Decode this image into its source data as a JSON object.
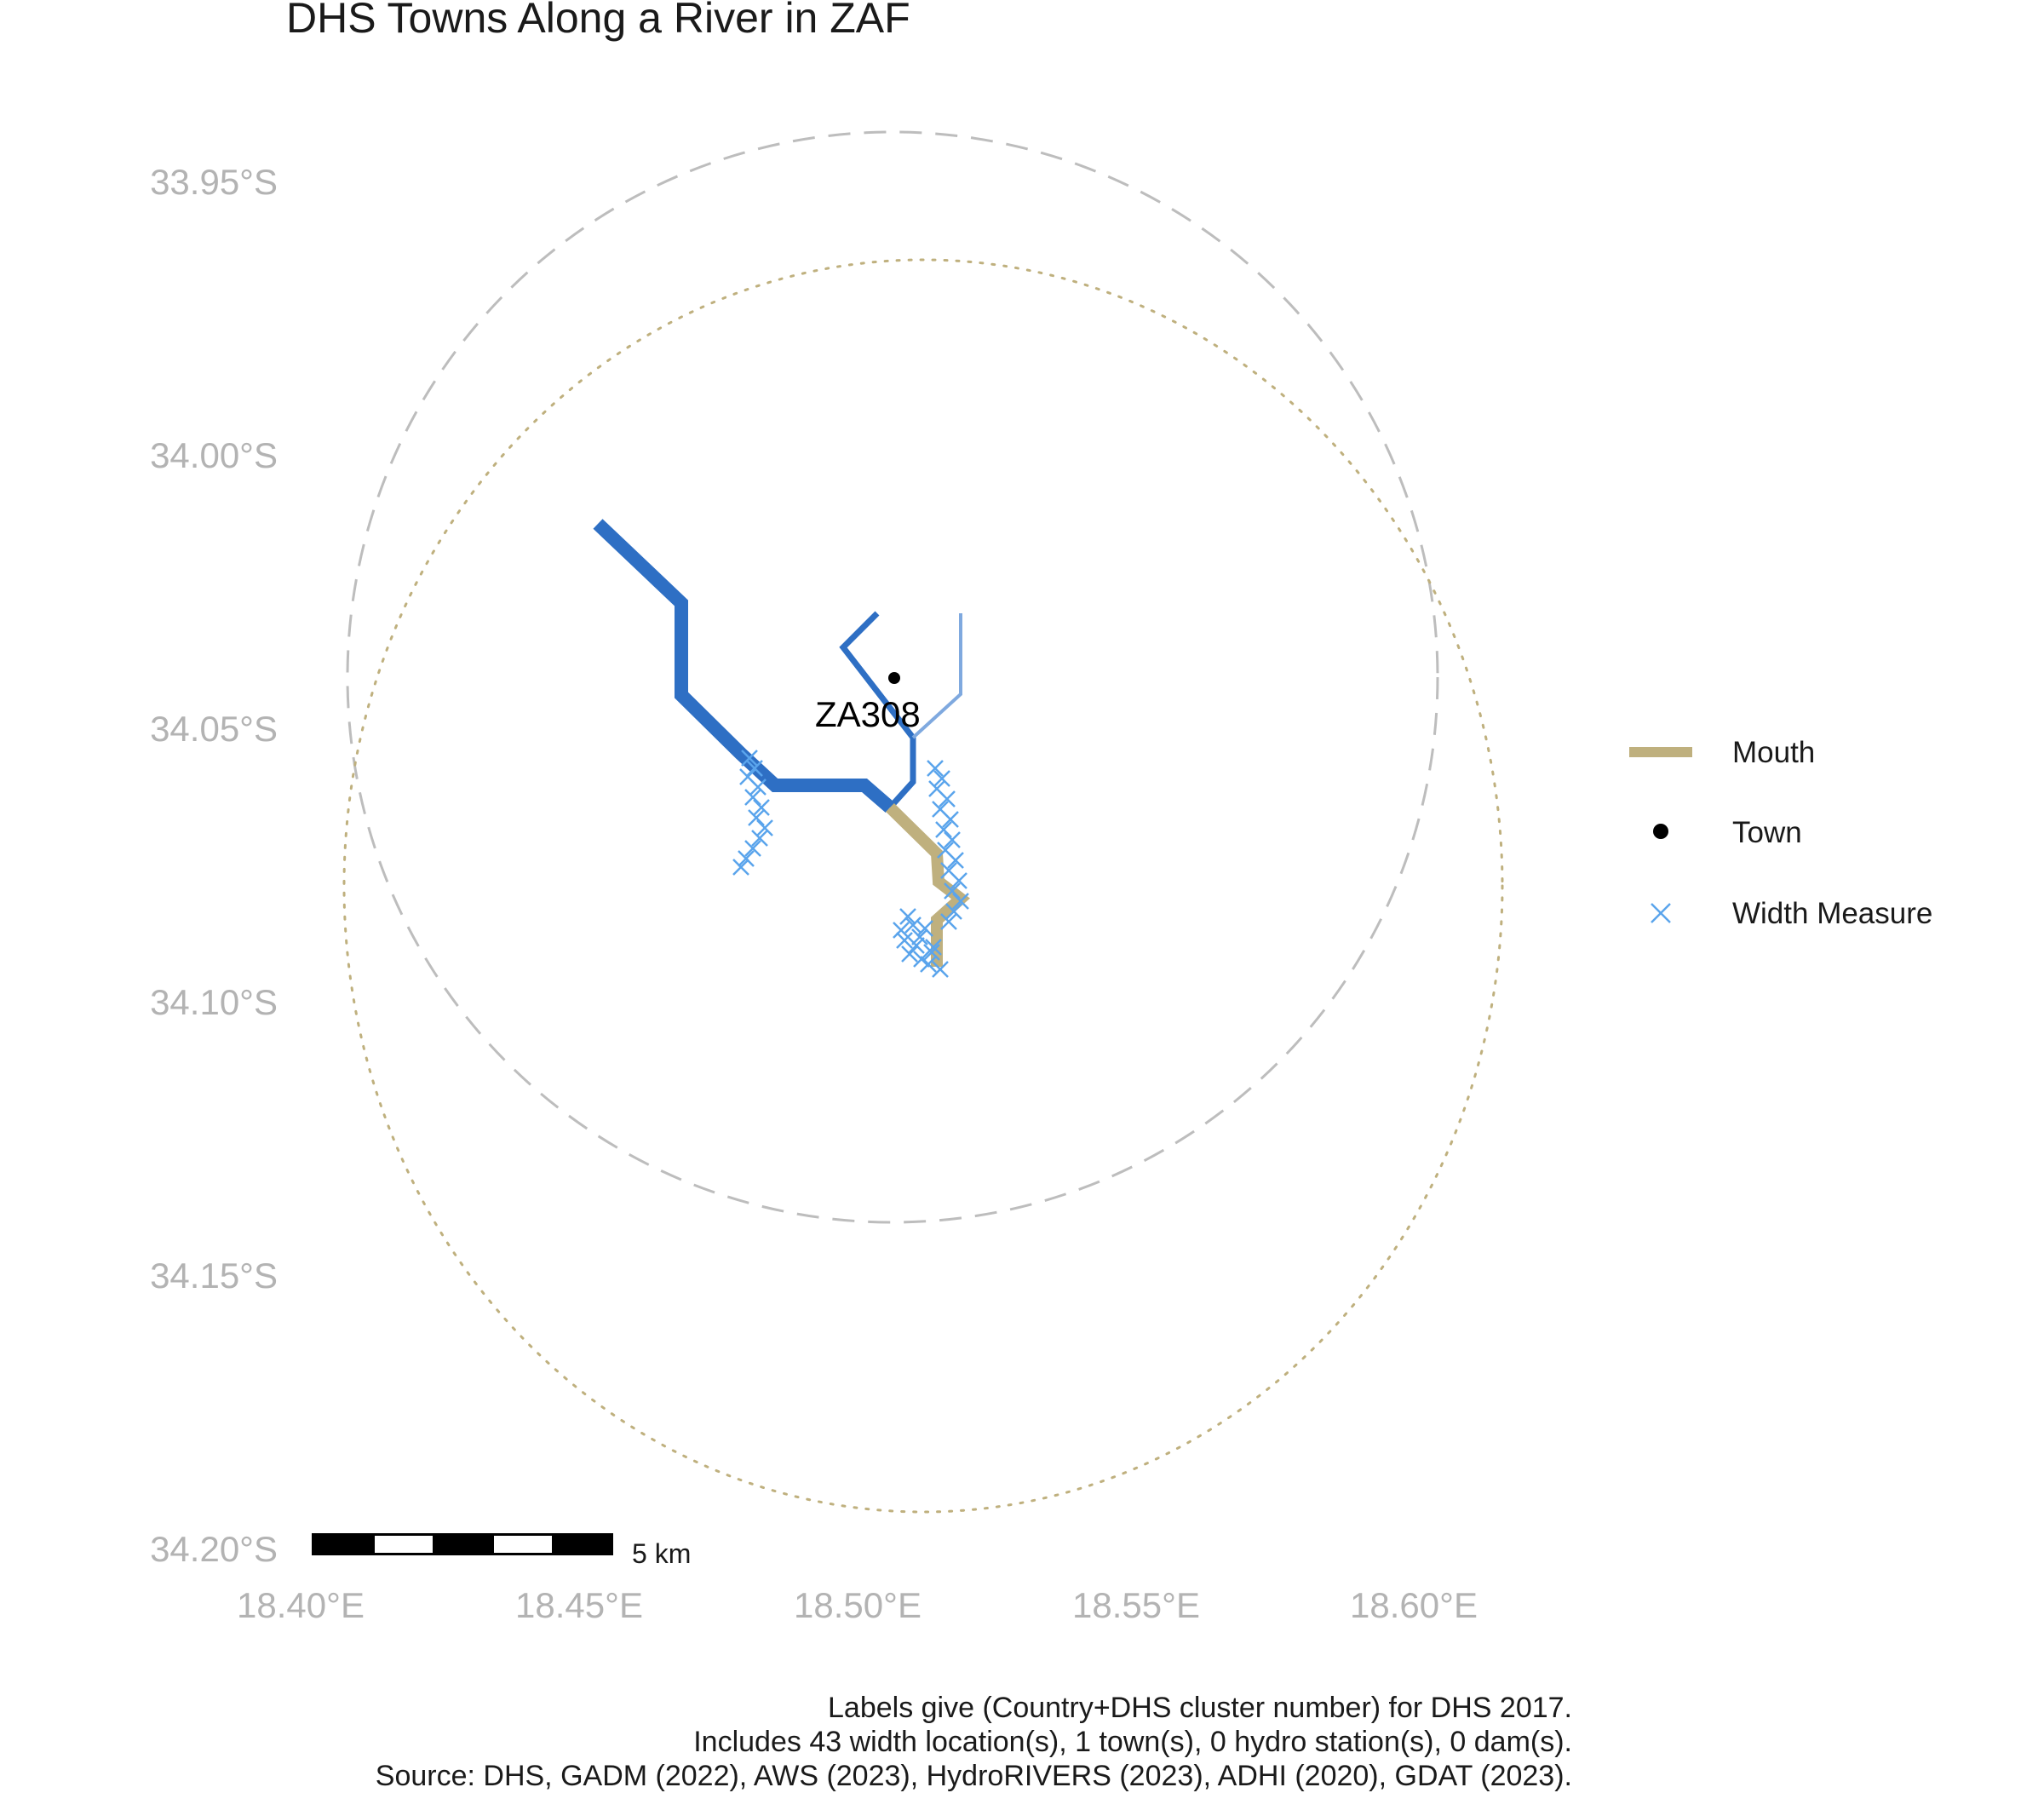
{
  "title": "DHS Towns Along a River in ZAF",
  "axes": {
    "y_ticks": [
      "33.95°S",
      "34.00°S",
      "34.05°S",
      "34.10°S",
      "34.15°S",
      "34.20°S"
    ],
    "x_ticks": [
      "18.40°E",
      "18.45°E",
      "18.50°E",
      "18.55°E",
      "18.60°E"
    ]
  },
  "legend": {
    "items": [
      {
        "label": "Mouth",
        "color": "#bfb07e",
        "symbol": "line"
      },
      {
        "label": "Town",
        "color": "#000000",
        "symbol": "dot"
      },
      {
        "label": "Width Measure",
        "color": "#5aa4ec",
        "symbol": "cross"
      }
    ]
  },
  "town": {
    "label": "ZA308",
    "lon": 18.507,
    "lat": -34.04
  },
  "scale_bar": {
    "label": "5 km"
  },
  "caption": {
    "lines": [
      "Labels give (Country+DHS cluster number) for DHS 2017.",
      "Includes 43 width location(s), 1 town(s), 0 hydro station(s), 0 dam(s).",
      "Source: DHS, GADM (2022), AWS (2023), HydroRIVERS (2023), ADHI (2020), GDAT (2023)."
    ]
  },
  "colors": {
    "river_main": "#2e6fc4",
    "river_light": "#7fa9df",
    "mouth": "#bfb07e",
    "width_measure": "#5aa4ec",
    "buffer_dashed": "#bdbdbd",
    "buffer_dotted": "#bfb07e",
    "axis_text": "#b3b3b3"
  }
}
